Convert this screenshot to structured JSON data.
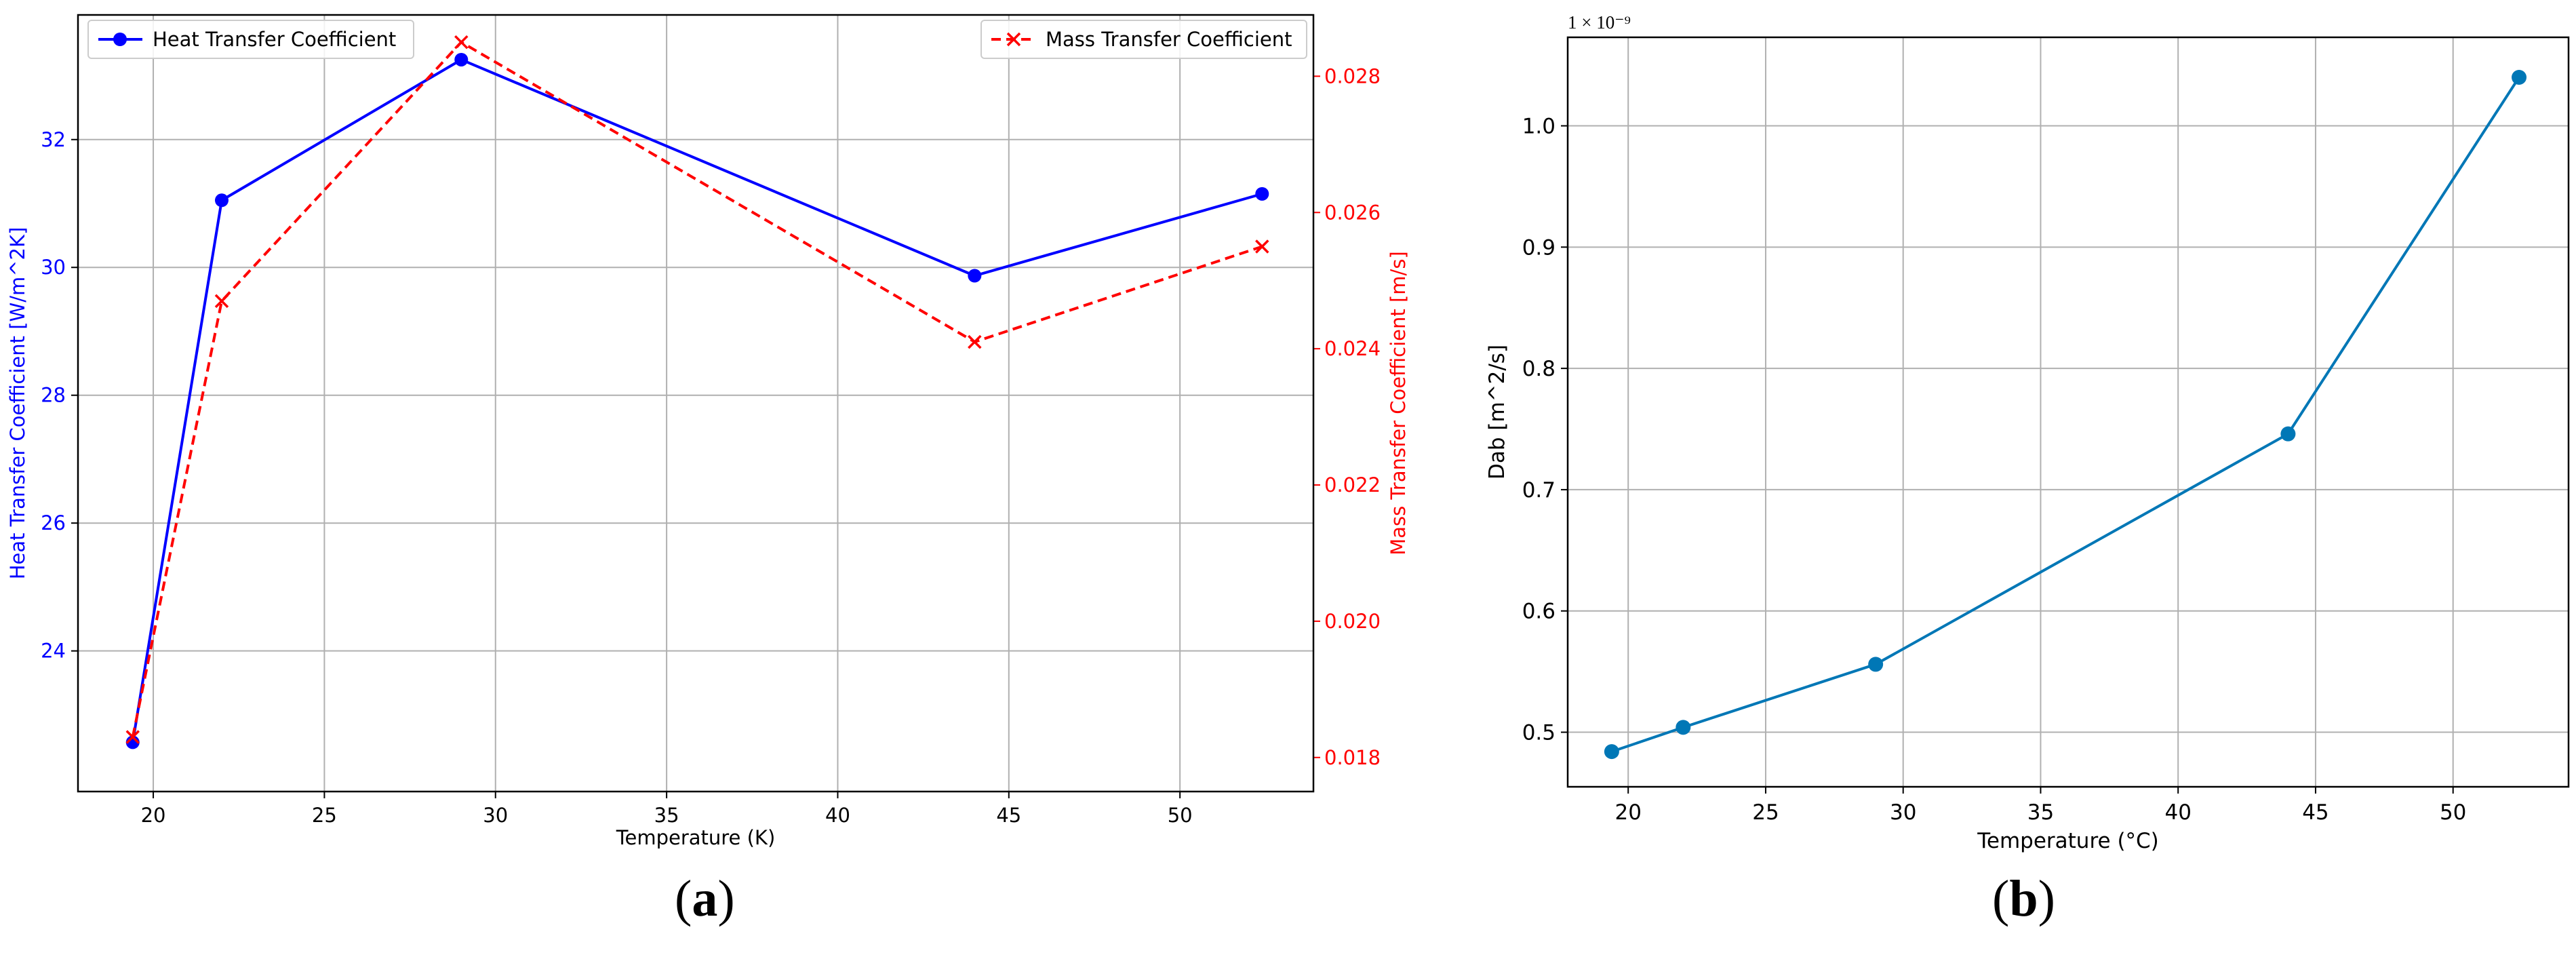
{
  "colors": {
    "heat": "#0000ff",
    "mass": "#ff0000",
    "dab": "#0077b6",
    "grid": "#b0b0b0",
    "axis": "#000000"
  },
  "chart_data": [
    {
      "type": "line",
      "panel_label": "a",
      "xlabel": "Temperature (K)",
      "ylabel": "Heat Transfer Coefficient [W/m^2K]",
      "y2label": "Mass Transfer Coefficient [m/s]",
      "xlim": [
        17.8,
        53.9
      ],
      "ylim": [
        21.8,
        33.95
      ],
      "y2lim": [
        0.0175,
        0.0289
      ],
      "xticks": [
        20,
        25,
        30,
        35,
        40,
        45,
        50
      ],
      "yticks": [
        24,
        26,
        28,
        30,
        32
      ],
      "y2ticks": [
        0.018,
        0.02,
        0.022,
        0.024,
        0.026,
        0.028
      ],
      "x": [
        19.4,
        22.0,
        29.0,
        44.0,
        52.4
      ],
      "grid": true,
      "series": [
        {
          "name": "Heat Transfer Coefficient",
          "axis": "left",
          "marker": "circle",
          "linestyle": "solid",
          "values": [
            22.57,
            31.05,
            33.25,
            29.87,
            31.15
          ]
        },
        {
          "name": "Mass Transfer Coefficient",
          "axis": "right",
          "marker": "x",
          "linestyle": "dashed",
          "values": [
            0.0183,
            0.0247,
            0.0285,
            0.0241,
            0.0255
          ]
        }
      ],
      "legend": [
        "top-left",
        "top-right"
      ]
    },
    {
      "type": "line",
      "panel_label": "b",
      "xlabel": "Temperature (°C)",
      "ylabel": "Dab [m^2/s]",
      "offset_text": "1 × 10⁻⁹",
      "xlim": [
        17.8,
        54.2
      ],
      "ylim": [
        0.455,
        1.073
      ],
      "xticks": [
        20,
        25,
        30,
        35,
        40,
        45,
        50
      ],
      "yticks": [
        0.5,
        0.6,
        0.7,
        0.8,
        0.9,
        1.0
      ],
      "x": [
        19.4,
        22.0,
        29.0,
        44.0,
        52.4
      ],
      "grid": true,
      "series": [
        {
          "marker": "circle",
          "linestyle": "solid",
          "values": [
            0.484,
            0.504,
            0.556,
            0.746,
            1.04
          ]
        }
      ]
    }
  ]
}
